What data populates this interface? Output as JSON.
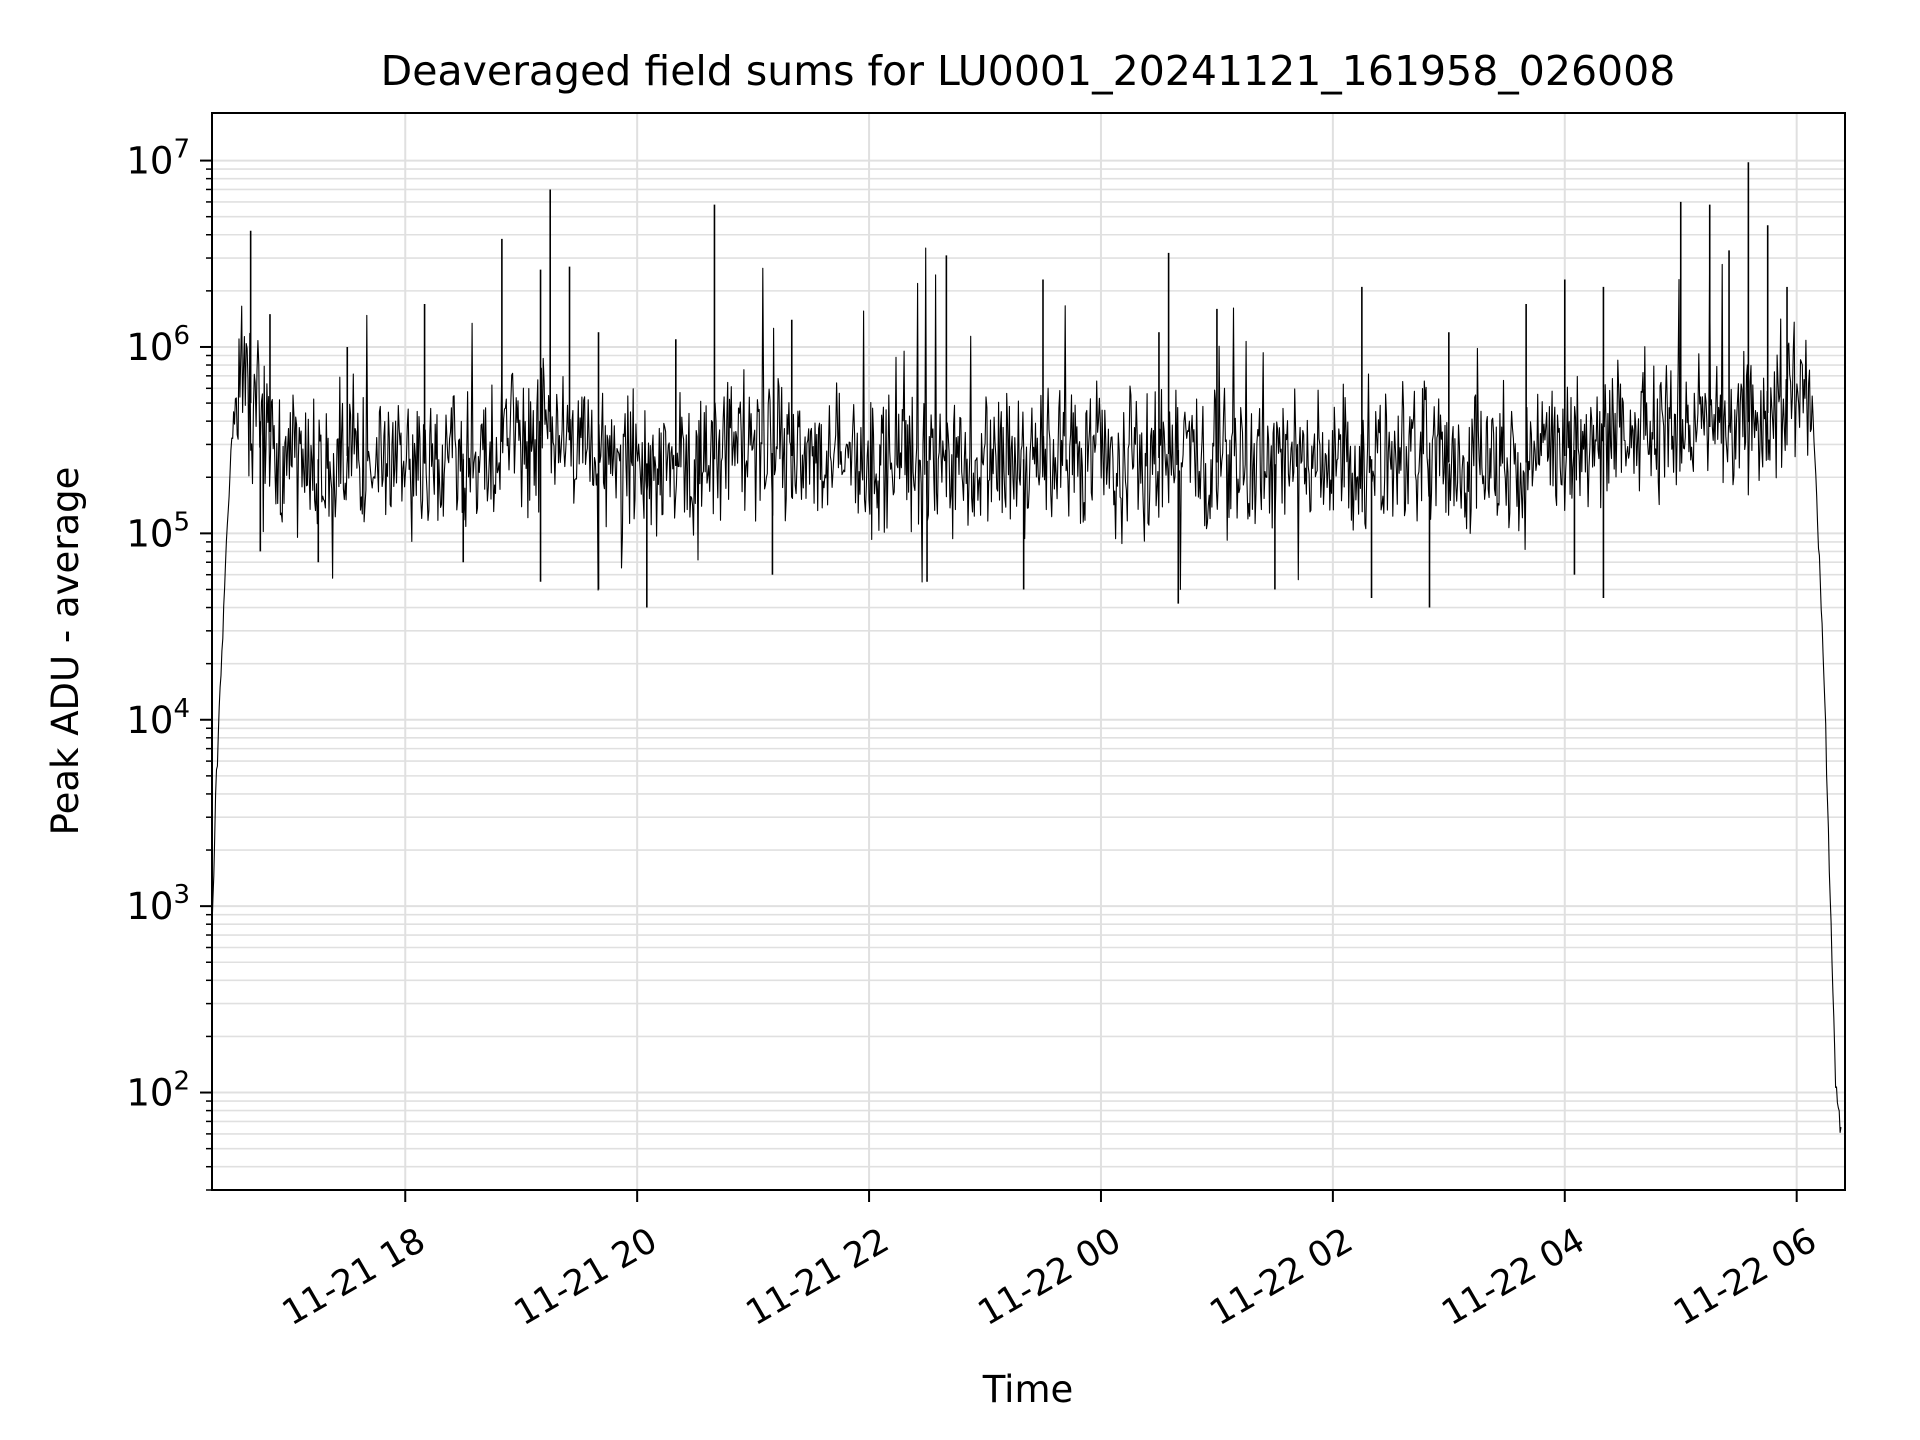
{
  "chart_data": {
    "type": "line",
    "title": "Deaveraged field sums for LU0001_20241121_161958_026008",
    "xlabel": "Time",
    "ylabel": "Peak ADU - average",
    "yscale": "log",
    "xlim": [
      "2024-11-21 16:20",
      "2024-11-22 06:25"
    ],
    "ylim": [
      30,
      18000000
    ],
    "grid": "both, major and minor, light gray",
    "legend": "none",
    "x_ticks": [
      "2024-11-21 18:00",
      "2024-11-21 20:00",
      "2024-11-21 22:00",
      "2024-11-22 00:00",
      "2024-11-22 02:00",
      "2024-11-22 04:00",
      "2024-11-22 06:00"
    ],
    "x_tick_labels": [
      "11-21 18",
      "11-21 20",
      "11-21 22",
      "11-22 00",
      "11-22 02",
      "11-22 04",
      "11-22 06"
    ],
    "y_ticks": [
      100,
      1000,
      10000,
      100000,
      1000000,
      10000000
    ],
    "y_tick_labels": [
      {
        "base": "10",
        "exp": "2"
      },
      {
        "base": "10",
        "exp": "3"
      },
      {
        "base": "10",
        "exp": "4"
      },
      {
        "base": "10",
        "exp": "5"
      },
      {
        "base": "10",
        "exp": "6"
      },
      {
        "base": "10",
        "exp": "7"
      }
    ],
    "line_color": "#000000",
    "grid_color": "#e0e0e0",
    "series": [
      {
        "x": [
          "2024-11-21 16:20",
          "2024-11-21 16:22",
          "2024-11-21 16:24",
          "2024-11-21 16:27",
          "2024-11-21 16:30",
          "2024-11-21 16:33",
          "2024-11-21 16:36",
          "2024-11-21 16:40",
          "2024-11-21 16:45",
          "2024-11-21 16:50",
          "2024-11-21 16:55",
          "2024-11-21 17:00",
          "2024-11-21 17:05",
          "2024-11-21 17:15",
          "2024-11-21 17:30",
          "2024-11-21 17:45",
          "2024-11-21 18:00",
          "2024-11-21 18:15",
          "2024-11-21 18:30",
          "2024-11-21 18:45",
          "2024-11-21 18:55",
          "2024-11-21 19:00",
          "2024-11-21 19:15",
          "2024-11-21 19:30",
          "2024-11-21 19:45",
          "2024-11-21 20:00",
          "2024-11-21 20:20",
          "2024-11-21 20:40",
          "2024-11-21 20:50",
          "2024-11-21 21:00",
          "2024-11-21 21:20",
          "2024-11-21 21:40",
          "2024-11-21 22:00",
          "2024-11-21 22:20",
          "2024-11-21 22:40",
          "2024-11-21 23:00",
          "2024-11-21 23:20",
          "2024-11-21 23:35",
          "2024-11-21 23:45",
          "2024-11-22 00:00",
          "2024-11-22 00:20",
          "2024-11-22 00:40",
          "2024-11-22 01:00",
          "2024-11-22 01:20",
          "2024-11-22 01:40",
          "2024-11-22 02:00",
          "2024-11-22 02:20",
          "2024-11-22 02:40",
          "2024-11-22 03:00",
          "2024-11-22 03:20",
          "2024-11-22 03:40",
          "2024-11-22 04:00",
          "2024-11-22 04:20",
          "2024-11-22 04:40",
          "2024-11-22 05:00",
          "2024-11-22 05:20",
          "2024-11-22 05:40",
          "2024-11-22 06:00",
          "2024-11-22 06:05",
          "2024-11-22 06:08",
          "2024-11-22 06:11",
          "2024-11-22 06:14",
          "2024-11-22 06:17",
          "2024-11-22 06:20",
          "2024-11-22 06:23"
        ],
        "y": [
          700,
          4000,
          12000,
          70000,
          300000,
          600000,
          700000,
          500000,
          400000,
          350000,
          250000,
          220000,
          230000,
          250000,
          260000,
          240000,
          230000,
          240000,
          250000,
          240000,
          400000,
          300000,
          350000,
          300000,
          260000,
          240000,
          230000,
          250000,
          350000,
          280000,
          260000,
          250000,
          240000,
          250000,
          240000,
          230000,
          250000,
          240000,
          300000,
          240000,
          230000,
          280000,
          240000,
          230000,
          240000,
          230000,
          250000,
          260000,
          240000,
          250000,
          240000,
          260000,
          350000,
          380000,
          350000,
          380000,
          400000,
          600000,
          700000,
          500000,
          100000,
          20000,
          1500,
          120,
          60
        ],
        "spikes": [
          {
            "x": "2024-11-21 16:40",
            "y": 4200000
          },
          {
            "x": "2024-11-21 16:50",
            "y": 1500000
          },
          {
            "x": "2024-11-21 17:30",
            "y": 1000000
          },
          {
            "x": "2024-11-21 18:10",
            "y": 1700000
          },
          {
            "x": "2024-11-21 18:50",
            "y": 3800000
          },
          {
            "x": "2024-11-21 19:10",
            "y": 2600000
          },
          {
            "x": "2024-11-21 19:15",
            "y": 7000000
          },
          {
            "x": "2024-11-21 19:25",
            "y": 2700000
          },
          {
            "x": "2024-11-21 19:40",
            "y": 1200000
          },
          {
            "x": "2024-11-21 20:20",
            "y": 1100000
          },
          {
            "x": "2024-11-21 20:40",
            "y": 5800000
          },
          {
            "x": "2024-11-21 21:20",
            "y": 1400000
          },
          {
            "x": "2024-11-21 22:40",
            "y": 3100000
          },
          {
            "x": "2024-11-21 23:30",
            "y": 2300000
          },
          {
            "x": "2024-11-22 00:30",
            "y": 1200000
          },
          {
            "x": "2024-11-22 00:35",
            "y": 3200000
          },
          {
            "x": "2024-11-22 01:00",
            "y": 1600000
          },
          {
            "x": "2024-11-22 02:15",
            "y": 2100000
          },
          {
            "x": "2024-11-22 03:00",
            "y": 1200000
          },
          {
            "x": "2024-11-22 03:40",
            "y": 1700000
          },
          {
            "x": "2024-11-22 04:00",
            "y": 2300000
          },
          {
            "x": "2024-11-22 04:20",
            "y": 2100000
          },
          {
            "x": "2024-11-22 05:00",
            "y": 6000000
          },
          {
            "x": "2024-11-22 05:15",
            "y": 5800000
          },
          {
            "x": "2024-11-22 05:25",
            "y": 3300000
          },
          {
            "x": "2024-11-22 05:35",
            "y": 9800000
          },
          {
            "x": "2024-11-22 05:45",
            "y": 4500000
          },
          {
            "x": "2024-11-22 05:55",
            "y": 2100000
          }
        ],
        "dips": [
          {
            "x": "2024-11-21 16:45",
            "y": 80000
          },
          {
            "x": "2024-11-21 17:15",
            "y": 70000
          },
          {
            "x": "2024-11-21 18:30",
            "y": 70000
          },
          {
            "x": "2024-11-21 19:10",
            "y": 55000
          },
          {
            "x": "2024-11-21 19:40",
            "y": 50000
          },
          {
            "x": "2024-11-21 20:05",
            "y": 40000
          },
          {
            "x": "2024-11-21 21:10",
            "y": 60000
          },
          {
            "x": "2024-11-21 22:30",
            "y": 55000
          },
          {
            "x": "2024-11-21 23:20",
            "y": 50000
          },
          {
            "x": "2024-11-22 00:40",
            "y": 42000
          },
          {
            "x": "2024-11-22 01:30",
            "y": 50000
          },
          {
            "x": "2024-11-22 02:20",
            "y": 45000
          },
          {
            "x": "2024-11-22 02:50",
            "y": 40000
          },
          {
            "x": "2024-11-22 04:05",
            "y": 60000
          },
          {
            "x": "2024-11-22 04:20",
            "y": 45000
          }
        ]
      }
    ]
  }
}
